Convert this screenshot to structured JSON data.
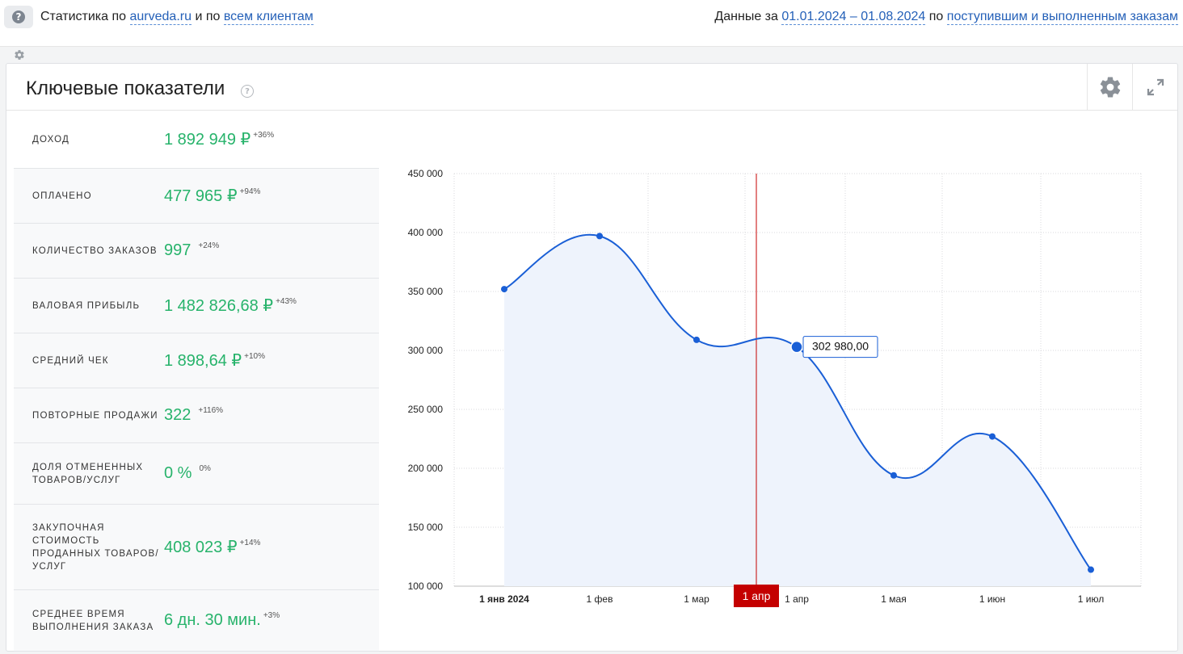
{
  "topbar": {
    "help_icon": "question-icon",
    "stats_prefix": "Статистика по",
    "site_link": "aurveda.ru",
    "and_by": "и по",
    "clients_link": "всем клиентам",
    "data_for": "Данные за",
    "date_range_link": "01.01.2024 – 01.08.2024",
    "by": "по",
    "orders_link": "поступившим и выполненным заказам"
  },
  "card": {
    "title": "Ключевые показатели",
    "help_icon": "question-icon",
    "settings_icon": "gear-icon",
    "expand_icon": "expand-icon"
  },
  "metrics": [
    {
      "label": "Доход",
      "value": "1 892 949 ₽",
      "delta": "+36%"
    },
    {
      "label": "Оплачено",
      "value": "477 965 ₽",
      "delta": "+94%"
    },
    {
      "label": "Количество заказов",
      "value": "997",
      "delta": "+24%"
    },
    {
      "label": "Валовая прибыль",
      "value": "1 482 826,68 ₽",
      "delta": "+43%"
    },
    {
      "label": "Средний чек",
      "value": "1 898,64 ₽",
      "delta": "+10%"
    },
    {
      "label": "Повторные продажи",
      "value": "322",
      "delta": "+116%"
    },
    {
      "label": "Доля отмененных товаров/услуг",
      "value": "0 %",
      "delta": "0%"
    },
    {
      "label": "Закупочная стоимость проданных товаров/услуг",
      "value": "408 023 ₽",
      "delta": "+14%"
    },
    {
      "label": "Среднее время выполнения заказа",
      "value": "6 дн. 30 мин.",
      "delta": "+3%"
    }
  ],
  "colors": {
    "accent_green": "#27b36b",
    "link_blue": "#2460b8",
    "line_blue": "#1a5fd6",
    "area_fill": "#eef3fc",
    "crosshair_red": "#c40000"
  },
  "chart_data": {
    "type": "line",
    "x": [
      "1 янв 2024",
      "1 фев",
      "1 мар",
      "1 апр",
      "1 мая",
      "1 июн",
      "1 июл"
    ],
    "values": [
      352000,
      397000,
      309000,
      302980,
      194000,
      227000,
      114000
    ],
    "ylim": [
      100000,
      450000
    ],
    "yticks": [
      "450 000",
      "400 000",
      "350 000",
      "300 000",
      "250 000",
      "200 000",
      "150 000",
      "100 000"
    ],
    "tooltip": "302 980,00",
    "crosshair_label": "1 апр",
    "grid": true,
    "area_fill": true
  }
}
